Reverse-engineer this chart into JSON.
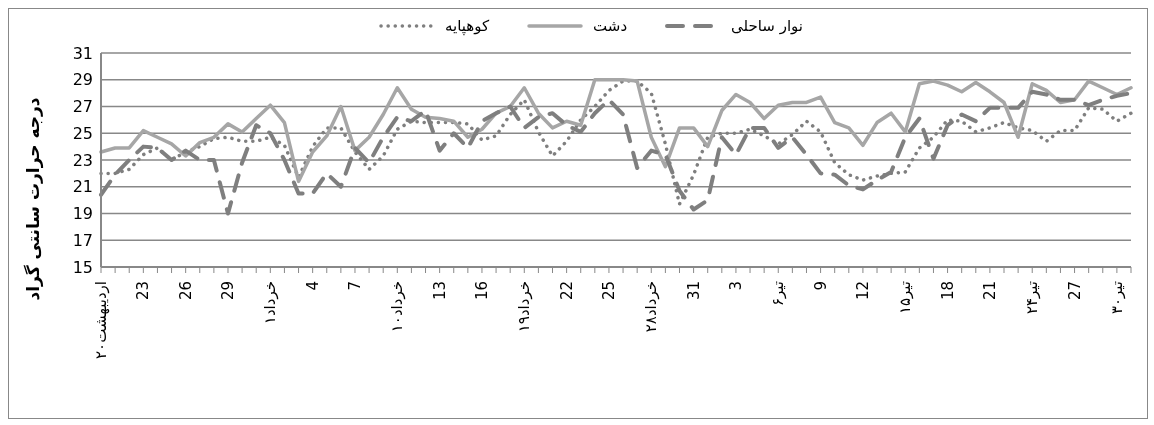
{
  "chart_data": {
    "type": "line",
    "ylabel": "درجه حرارت سانتی گراد",
    "categories": [
      "۲۰اردیبهشت",
      null,
      null,
      "23",
      null,
      null,
      "26",
      null,
      null,
      "29",
      null,
      null,
      "۱خرداد",
      null,
      null,
      "4",
      null,
      null,
      "7",
      null,
      null,
      "۱۰خرداد",
      null,
      null,
      "13",
      null,
      null,
      "16",
      null,
      null,
      "۱۹خرداد",
      null,
      null,
      "22",
      null,
      null,
      "25",
      null,
      null,
      "۲۸خرداد",
      null,
      null,
      "31",
      null,
      null,
      "3",
      null,
      null,
      "۶تیر",
      null,
      null,
      "9",
      null,
      null,
      "12",
      null,
      null,
      "۱۵تیر",
      null,
      null,
      "18",
      null,
      null,
      "21",
      null,
      null,
      "۲۴تیر",
      null,
      null,
      "27",
      null,
      null,
      "۳۰تیر",
      null
    ],
    "series": [
      {
        "name": "کوهپایه",
        "color": "#7f7f7f",
        "line_style": "dotted",
        "values": [
          22,
          22,
          22.3,
          23.4,
          23.9,
          23,
          23.6,
          24,
          24.6,
          24.7,
          24.4,
          24.4,
          24.7,
          24.1,
          21.7,
          24,
          25.4,
          25.4,
          23.6,
          22.3,
          23.3,
          25.3,
          25.9,
          25.8,
          25.8,
          25.8,
          25.7,
          24.5,
          24.8,
          26.4,
          27.5,
          25.1,
          23.3,
          24.4,
          26,
          27,
          28.2,
          28.9,
          28.9,
          28,
          24.2,
          19.7,
          21.9,
          24.7,
          25,
          25,
          25.3,
          24.8,
          24.2,
          24.9,
          25.9,
          25.1,
          22.8,
          21.9,
          21.5,
          21.8,
          22,
          22.1,
          23.9,
          24.7,
          26,
          25.9,
          25.1,
          25.4,
          25.8,
          25.4,
          25.2,
          24.4,
          25.2,
          25.2,
          26.9,
          26.8,
          25.9,
          26.5
        ]
      },
      {
        "name": "دشت",
        "color": "#a6a6a6",
        "line_style": "solid",
        "values": [
          23.6,
          23.9,
          23.9,
          25.2,
          24.7,
          24.2,
          23.3,
          24.3,
          24.7,
          25.7,
          25.1,
          26.1,
          27.1,
          25.8,
          21.4,
          23.6,
          24.8,
          27,
          23.7,
          24.7,
          26.4,
          28.4,
          26.8,
          26.2,
          26.1,
          25.9,
          24.7,
          25.3,
          26.5,
          27,
          28.4,
          26.5,
          25.4,
          25.9,
          25.6,
          29,
          29,
          29,
          28.9,
          24.7,
          22.5,
          25.4,
          25.4,
          24,
          26.7,
          27.9,
          27.3,
          26.1,
          27.1,
          27.3,
          27.3,
          27.7,
          25.8,
          25.4,
          24.1,
          25.8,
          26.5,
          25.1,
          28.7,
          28.9,
          28.6,
          28.1,
          28.8,
          28.1,
          27.3,
          24.7,
          28.7,
          28.2,
          27.3,
          27.5,
          28.9,
          28.4,
          27.9,
          28.4
        ]
      },
      {
        "name": "نوار ساحلی",
        "color": "#7f7f7f",
        "line_style": "dashed",
        "values": [
          20.4,
          21.9,
          23,
          24,
          23.9,
          23,
          23.7,
          23,
          23,
          19,
          22.8,
          25.6,
          25,
          23,
          20.5,
          20.5,
          22,
          21,
          23.9,
          22.8,
          24.7,
          26.2,
          25.9,
          26.7,
          23.7,
          25,
          23.9,
          25.9,
          26.5,
          27,
          25.4,
          26.2,
          26.5,
          25.6,
          25.1,
          26.5,
          27.5,
          26.4,
          22.4,
          23.7,
          23.4,
          20.7,
          19.3,
          20,
          24.7,
          23.4,
          25.4,
          25.4,
          23.9,
          24.7,
          23.4,
          22,
          21.9,
          21.1,
          20.8,
          21.5,
          22.1,
          24.7,
          26.1,
          23.1,
          25.6,
          26.4,
          25.9,
          26.9,
          26.9,
          26.9,
          28.1,
          27.9,
          27.5,
          27.5,
          27.1,
          27.5,
          27.8,
          28
        ]
      }
    ],
    "ylim": [
      15,
      31
    ],
    "yticks": [
      15,
      17,
      19,
      21,
      23,
      25,
      27,
      29,
      31
    ],
    "grid": "y",
    "legend": "top",
    "marker": "none"
  }
}
